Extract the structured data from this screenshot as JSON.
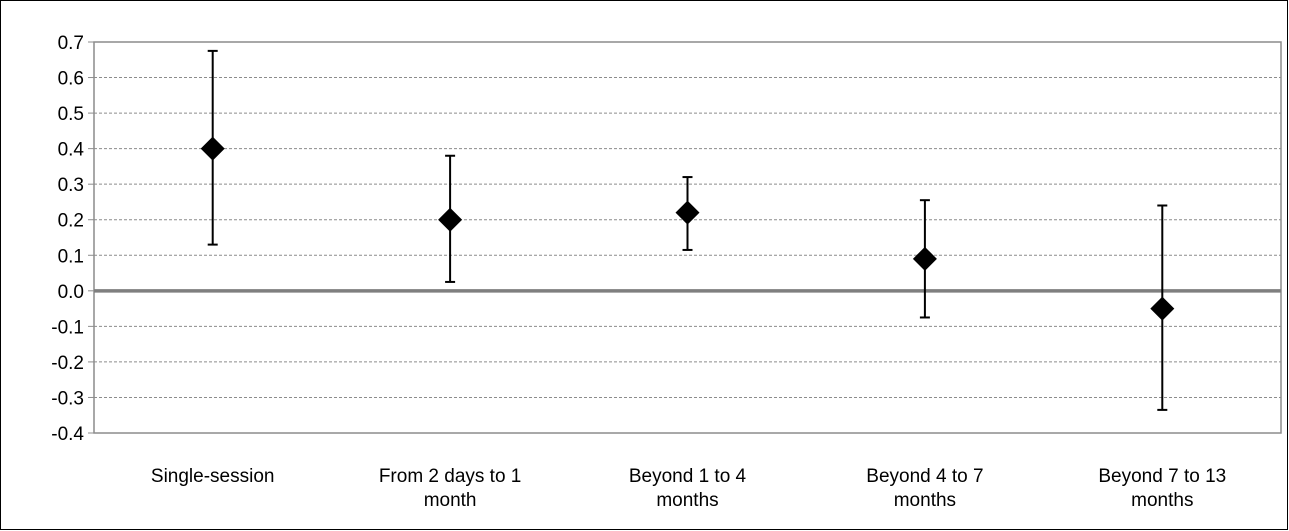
{
  "chart_data": {
    "type": "scatter",
    "title": "",
    "xlabel": "",
    "ylabel": "",
    "ylim": [
      -0.4,
      0.7
    ],
    "y_ticks": [
      "0.7",
      "0.6",
      "0.5",
      "0.4",
      "0.3",
      "0.2",
      "0.1",
      "0.0",
      "-0.1",
      "-0.2",
      "-0.3",
      "-0.4"
    ],
    "y_tick_values": [
      0.7,
      0.6,
      0.5,
      0.4,
      0.3,
      0.2,
      0.1,
      0.0,
      -0.1,
      -0.2,
      -0.3,
      -0.4
    ],
    "grid": "horizontal dashed",
    "zero_line": true,
    "marker": "diamond",
    "error_bars": true,
    "categories": [
      [
        "Single-session"
      ],
      [
        "From 2 days to 1",
        "month"
      ],
      [
        "Beyond 1 to 4",
        "months"
      ],
      [
        "Beyond 4 to 7",
        "months"
      ],
      [
        "Beyond 7 to 13",
        "months"
      ]
    ],
    "values": [
      0.4,
      0.2,
      0.22,
      0.09,
      -0.05
    ],
    "ci_lower": [
      0.13,
      0.025,
      0.115,
      -0.075,
      -0.335
    ],
    "ci_upper": [
      0.675,
      0.38,
      0.32,
      0.255,
      0.24
    ]
  },
  "colors": {
    "marker": "#000000",
    "grid": "#8c8c8c",
    "zero_line": "#7f7f7f",
    "plot_border": "#8c8c8c"
  }
}
